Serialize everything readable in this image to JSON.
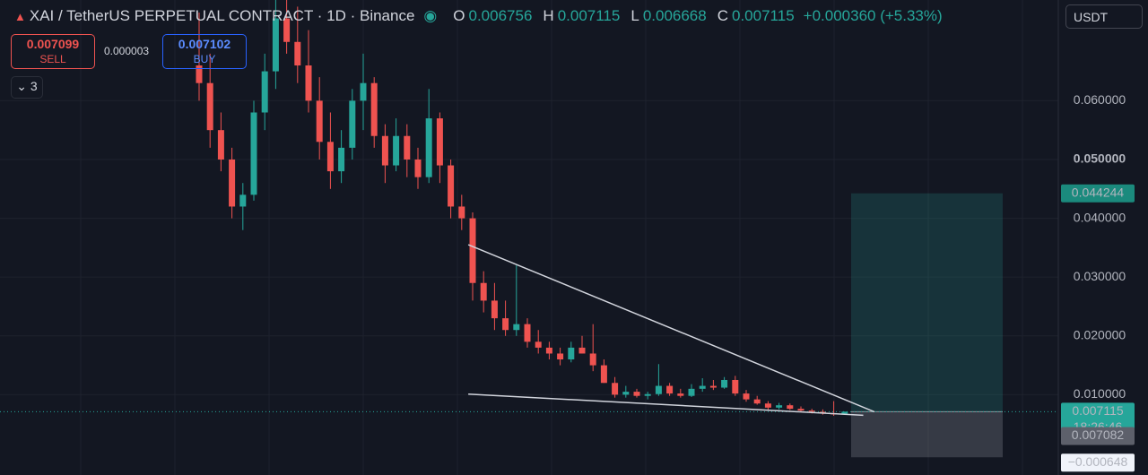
{
  "chart_data": {
    "type": "candlestick",
    "title": "XAI / TetherUS PERPETUAL CONTRACT · 1D · Binance",
    "ohlc_labels": {
      "open": "O",
      "high": "H",
      "low": "L",
      "close": "C"
    },
    "change": "+0.000360 (+5.33%)",
    "trade_panel": {
      "sell_price": "0.007099",
      "sell_label": "SELL",
      "spread": "0.000003",
      "buy_price": "0.007102",
      "buy_label": "BUY",
      "indicators_count": "3"
    },
    "currency": "USDT",
    "up_color": "#26a69a",
    "down_color": "#ef5350",
    "ylim": [
      -0.00366,
      0.07713
    ],
    "yticks": [
      {
        "value": 0.01,
        "label": "0.010000"
      },
      {
        "value": 0.02,
        "label": "0.020000"
      },
      {
        "value": 0.03,
        "label": "0.030000"
      },
      {
        "value": 0.04,
        "label": "0.040000"
      },
      {
        "value": 0.05,
        "label": "0.050000"
      },
      {
        "value": 0.06,
        "label": "0.060000"
      }
    ],
    "grid": true,
    "open": [
      0.066,
      0.063,
      0.055,
      0.05,
      0.042,
      0.044,
      0.058,
      0.065,
      0.074,
      0.07,
      0.066,
      0.06,
      0.053,
      0.048,
      0.052,
      0.06,
      0.063,
      0.054,
      0.049,
      0.054,
      0.05,
      0.047,
      0.057,
      0.049,
      0.042,
      0.04,
      0.029,
      0.026,
      0.023,
      0.021,
      0.022,
      0.019,
      0.018,
      0.017,
      0.016,
      0.018,
      0.017,
      0.015,
      0.012,
      0.01,
      0.0105,
      0.0098,
      0.0101,
      0.0115,
      0.0102,
      0.0098,
      0.011,
      0.0115,
      0.0112,
      0.0125,
      0.0102,
      0.0092,
      0.0085,
      0.0078,
      0.0082,
      0.0076,
      0.0073,
      0.0071,
      0.0068,
      0.006756
    ],
    "high": [
      0.075,
      0.068,
      0.058,
      0.052,
      0.046,
      0.06,
      0.068,
      0.078,
      0.079,
      0.076,
      0.072,
      0.064,
      0.058,
      0.055,
      0.062,
      0.068,
      0.064,
      0.056,
      0.057,
      0.056,
      0.052,
      0.062,
      0.058,
      0.05,
      0.044,
      0.041,
      0.031,
      0.029,
      0.026,
      0.032,
      0.023,
      0.021,
      0.019,
      0.018,
      0.019,
      0.02,
      0.022,
      0.016,
      0.013,
      0.0115,
      0.011,
      0.0105,
      0.0152,
      0.012,
      0.011,
      0.0118,
      0.0128,
      0.0125,
      0.013,
      0.0132,
      0.0108,
      0.0098,
      0.0089,
      0.0086,
      0.0085,
      0.008,
      0.0076,
      0.0075,
      0.0089,
      0.007115
    ],
    "low": [
      0.06,
      0.052,
      0.048,
      0.04,
      0.038,
      0.043,
      0.055,
      0.062,
      0.068,
      0.063,
      0.058,
      0.05,
      0.045,
      0.046,
      0.05,
      0.055,
      0.052,
      0.046,
      0.048,
      0.047,
      0.045,
      0.046,
      0.046,
      0.04,
      0.038,
      0.026,
      0.024,
      0.021,
      0.02,
      0.02,
      0.018,
      0.017,
      0.016,
      0.015,
      0.0155,
      0.017,
      0.014,
      0.012,
      0.0095,
      0.0095,
      0.0095,
      0.0092,
      0.0098,
      0.0098,
      0.0095,
      0.0096,
      0.0105,
      0.0108,
      0.011,
      0.0098,
      0.0088,
      0.0083,
      0.0074,
      0.0075,
      0.0074,
      0.0071,
      0.0068,
      0.0066,
      0.0064,
      0.006668
    ],
    "close": [
      0.063,
      0.055,
      0.05,
      0.042,
      0.044,
      0.058,
      0.065,
      0.074,
      0.07,
      0.066,
      0.06,
      0.053,
      0.048,
      0.052,
      0.06,
      0.063,
      0.054,
      0.049,
      0.054,
      0.05,
      0.047,
      0.057,
      0.049,
      0.042,
      0.04,
      0.029,
      0.026,
      0.023,
      0.021,
      0.022,
      0.019,
      0.018,
      0.017,
      0.016,
      0.018,
      0.017,
      0.015,
      0.012,
      0.01,
      0.0105,
      0.0098,
      0.0101,
      0.0115,
      0.0102,
      0.0098,
      0.011,
      0.0115,
      0.0112,
      0.0125,
      0.0102,
      0.0092,
      0.0085,
      0.0078,
      0.0082,
      0.0076,
      0.0073,
      0.0071,
      0.0068,
      0.0067,
      0.007115
    ],
    "countdown": "18:26:46",
    "trendlines": [
      {
        "x": [
          24.6,
          61.7
        ],
        "y": [
          0.0355,
          0.0071
        ]
      },
      {
        "x": [
          24.6,
          60.7
        ],
        "y": [
          0.0101,
          0.0065
        ]
      }
    ],
    "position": {
      "target": 0.044244,
      "entry": 0.007115,
      "stop": {
        "value": -0.000648,
        "label": "−0.000648"
      },
      "mid_price": 0.007082
    }
  }
}
